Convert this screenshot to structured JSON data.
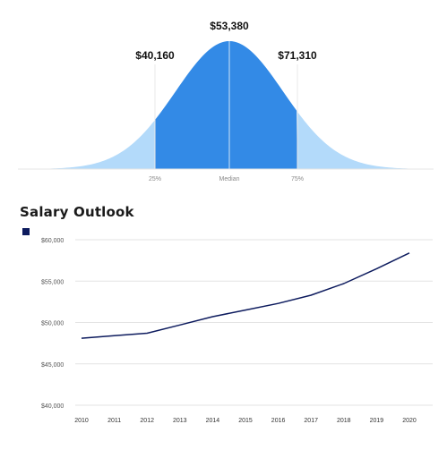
{
  "distribution": {
    "percentile_25": {
      "value": "$40,160",
      "label": "25%"
    },
    "median": {
      "value": "$53,380",
      "label": "Median"
    },
    "percentile_75": {
      "value": "$71,310",
      "label": "75%"
    },
    "colors": {
      "tails": "#b3dafa",
      "core": "#338ae6",
      "divider": "#cfe4f7"
    }
  },
  "outlook": {
    "title": "Salary Outlook"
  },
  "chart_data": {
    "type": "line",
    "title": "Salary Outlook",
    "x": [
      "2010",
      "2011",
      "2012",
      "2013",
      "2014",
      "2015",
      "2016",
      "2017",
      "2018",
      "2019",
      "2020"
    ],
    "series": [
      {
        "values": [
          48100,
          48400,
          48700,
          49700,
          50700,
          51500,
          52300,
          53300,
          54700,
          56500,
          58400
        ],
        "color": "#0d1b5e"
      }
    ],
    "ylim": [
      40000,
      60000
    ],
    "yticks": [
      {
        "value": 60000,
        "label": "$60,000"
      },
      {
        "value": 55000,
        "label": "$55,000"
      },
      {
        "value": 50000,
        "label": "$50,000"
      },
      {
        "value": 45000,
        "label": "$45,000"
      },
      {
        "value": 40000,
        "label": "$40,000"
      }
    ],
    "grid": true,
    "legend": "top-left"
  }
}
